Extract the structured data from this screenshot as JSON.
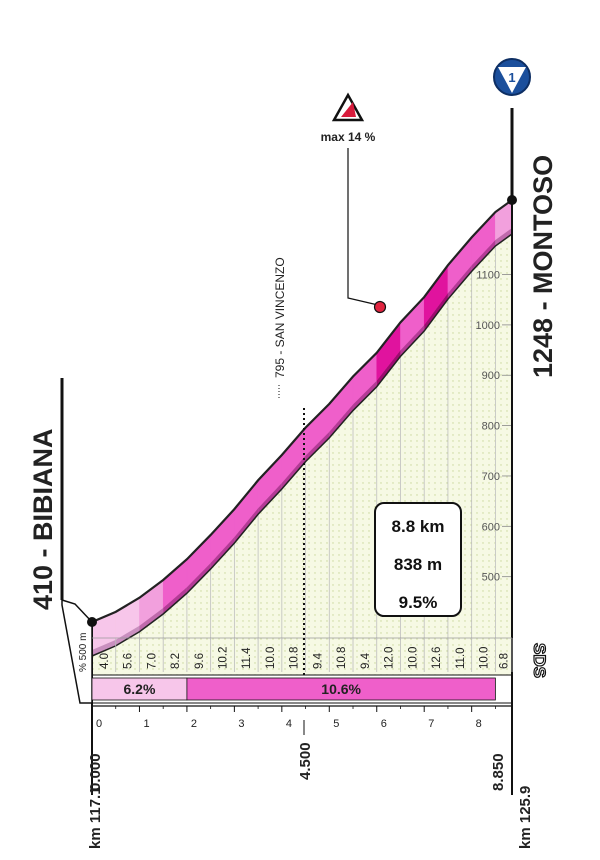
{
  "chart_data": {
    "type": "area",
    "start": {
      "altitude": 410,
      "name": "BIBIANA",
      "label": "410 - BIBIANA",
      "distance": "0.000",
      "km_race": "km 117.1"
    },
    "finish": {
      "altitude": 1248,
      "name": "MONTOSO",
      "label": "1248 - MONTOSO",
      "distance": "8.850",
      "km_race": "km 125.9"
    },
    "intermediate": {
      "distance": "4.500",
      "label": "795 - SAN VINCENZO",
      "altitude": 795
    },
    "max_gradient_label": "max 14 %",
    "summary": {
      "length": "8.8 km",
      "elevation_gain": "838 m",
      "avg_gradient": "9.5%"
    },
    "scale_label": "% 500 m",
    "brand_label": "SDS",
    "finish_badge": "1",
    "x_ticks": [
      "0",
      "1",
      "2",
      "3",
      "4",
      "5",
      "6",
      "7",
      "8"
    ],
    "y_ticks": [
      "500",
      "600",
      "700",
      "800",
      "900",
      "1000",
      "1100"
    ],
    "ylim": [
      410,
      1248
    ],
    "xlim": [
      0,
      8.85
    ],
    "gradients": [
      "4.0",
      "5.6",
      "7.0",
      "8.2",
      "9.6",
      "10.2",
      "11.4",
      "10.0",
      "10.8",
      "9.4",
      "10.8",
      "9.4",
      "12.0",
      "10.0",
      "12.6",
      "11.0",
      "10.0",
      "6.8"
    ],
    "gradient_intervals": [
      [
        0,
        0.5
      ],
      [
        0.5,
        1
      ],
      [
        1,
        1.5
      ],
      [
        1.5,
        2
      ],
      [
        2,
        2.5
      ],
      [
        2.5,
        3
      ],
      [
        3,
        3.5
      ],
      [
        3.5,
        4
      ],
      [
        4,
        4.5
      ],
      [
        4.5,
        5
      ],
      [
        5,
        5.5
      ],
      [
        5.5,
        6
      ],
      [
        6,
        6.5
      ],
      [
        6.5,
        7
      ],
      [
        7,
        7.5
      ],
      [
        7.5,
        8
      ],
      [
        8,
        8.5
      ],
      [
        8.5,
        8.85
      ]
    ],
    "segments": [
      {
        "label": "6.2%",
        "from": 0,
        "to": 2
      },
      {
        "label": "10.6%",
        "from": 2,
        "to": 8.5
      }
    ]
  }
}
